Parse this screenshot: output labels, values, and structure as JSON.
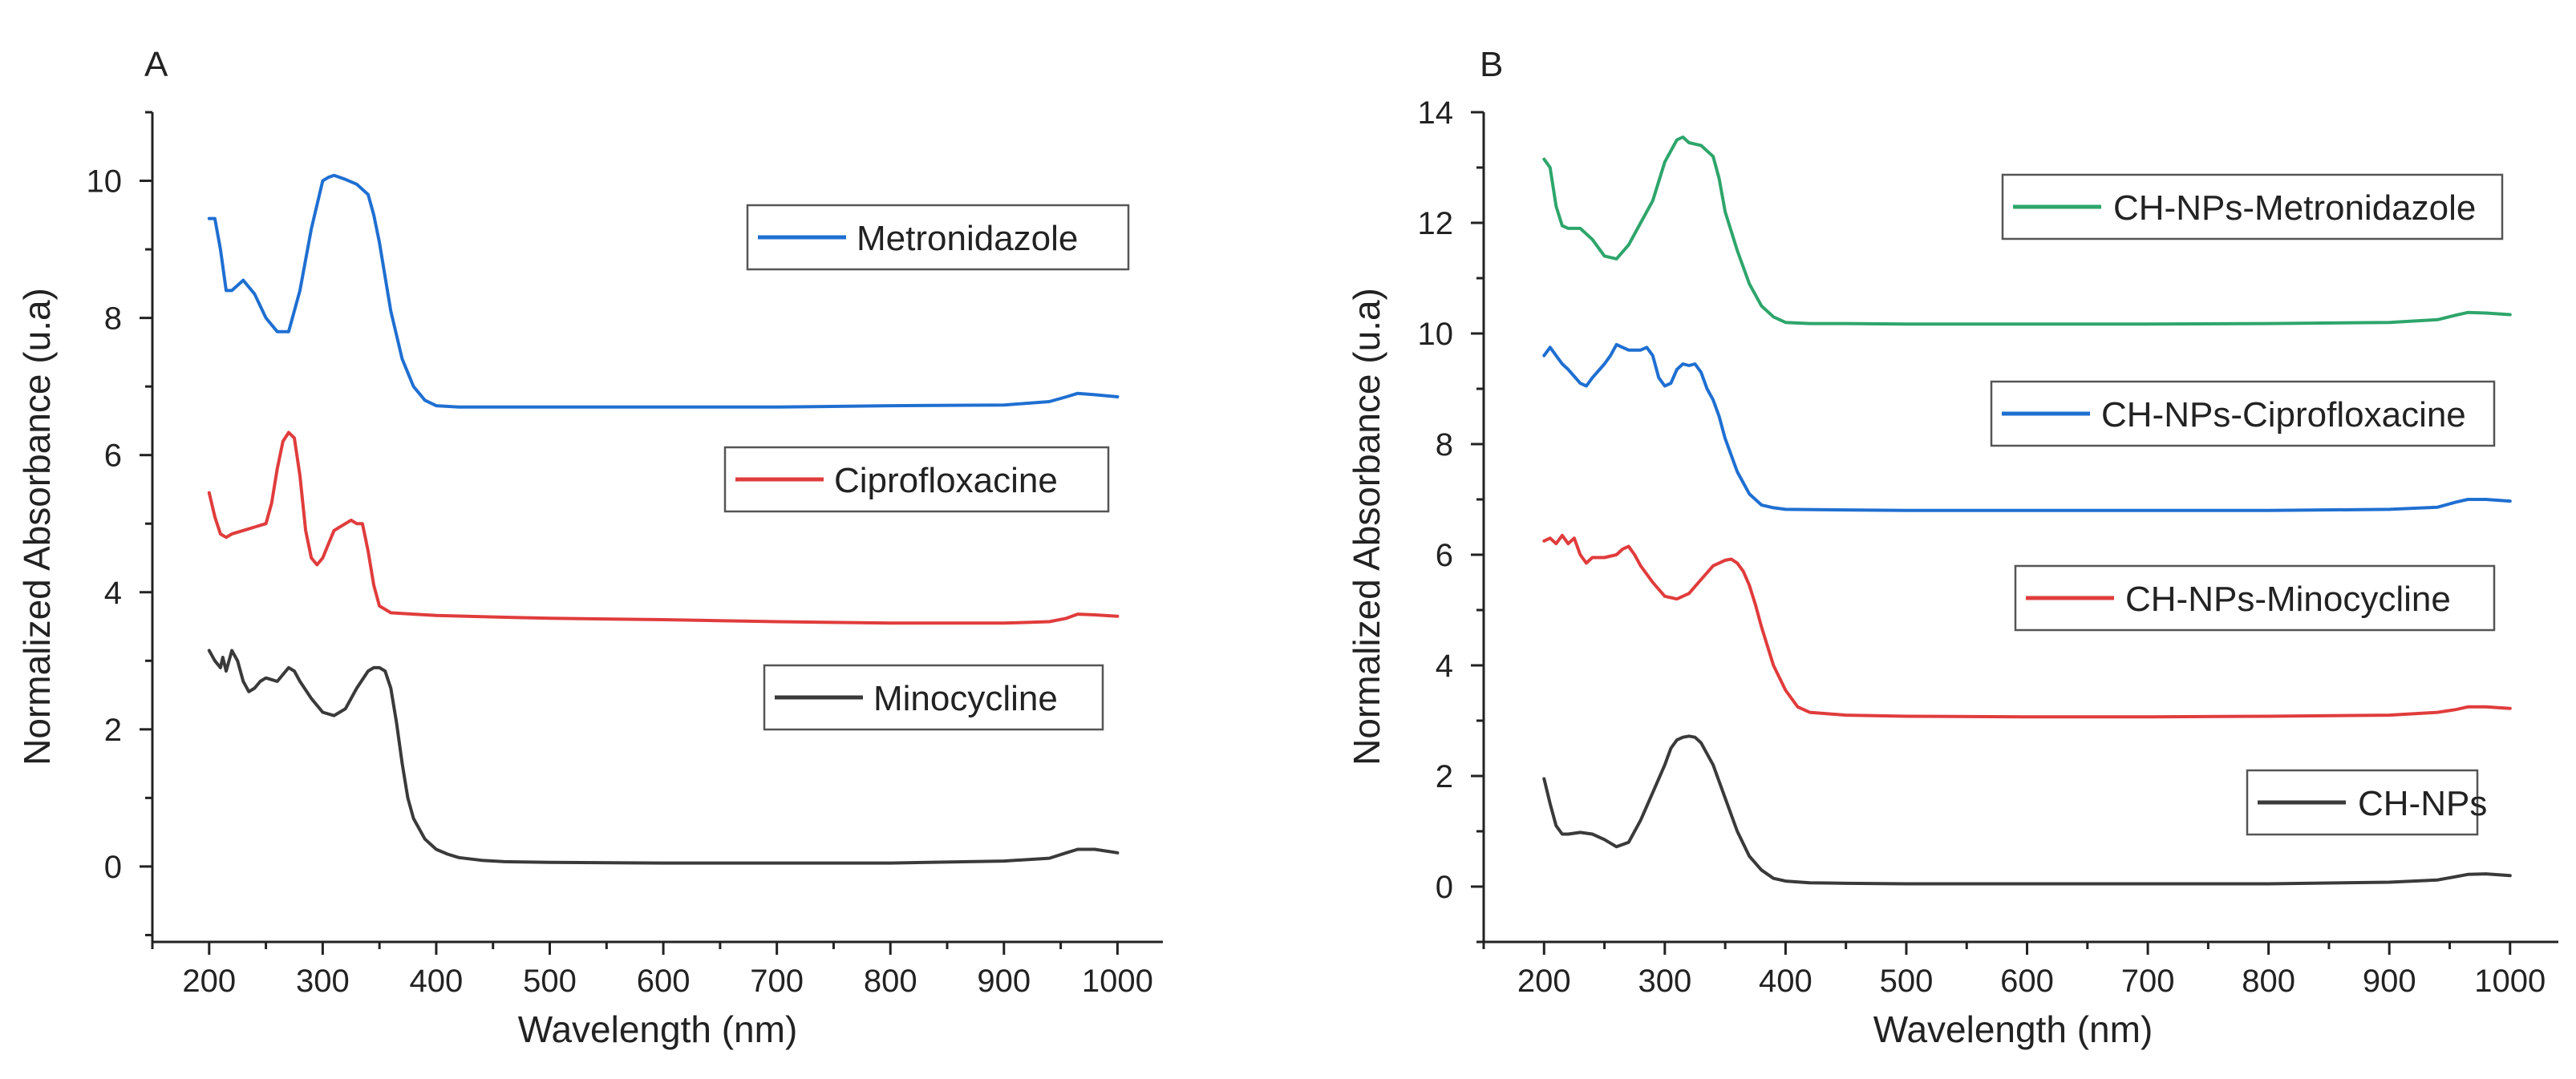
{
  "chart_data": [
    {
      "panel": "A",
      "type": "line",
      "title": "",
      "xlabel": "Wavelength (nm)",
      "ylabel": "Normalized Absorbance (u.a)",
      "xlim": [
        150,
        1040
      ],
      "ylim": [
        -1.1,
        11
      ],
      "xticks": [
        200,
        300,
        400,
        500,
        600,
        700,
        800,
        900,
        1000
      ],
      "yticks": [
        0,
        2,
        4,
        6,
        8,
        10
      ],
      "grid": false,
      "series": [
        {
          "name": "Metronidazole",
          "color": "#1f6fd1",
          "x": [
            200,
            205,
            210,
            215,
            220,
            230,
            240,
            250,
            260,
            270,
            280,
            290,
            300,
            305,
            310,
            320,
            330,
            340,
            345,
            350,
            355,
            360,
            370,
            380,
            390,
            400,
            420,
            450,
            500,
            600,
            700,
            800,
            900,
            940,
            955,
            965,
            980,
            1000
          ],
          "y": [
            9.45,
            9.45,
            9.0,
            8.4,
            8.4,
            8.55,
            8.35,
            8.0,
            7.8,
            7.8,
            8.4,
            9.3,
            10.0,
            10.05,
            10.08,
            10.02,
            9.95,
            9.8,
            9.5,
            9.1,
            8.6,
            8.1,
            7.4,
            7.0,
            6.8,
            6.72,
            6.7,
            6.7,
            6.7,
            6.7,
            6.7,
            6.72,
            6.73,
            6.78,
            6.85,
            6.9,
            6.88,
            6.85
          ]
        },
        {
          "name": "Ciprofloxacine",
          "color": "#e03c3c",
          "x": [
            200,
            205,
            210,
            215,
            220,
            230,
            240,
            250,
            255,
            260,
            265,
            270,
            275,
            280,
            285,
            290,
            295,
            300,
            305,
            310,
            320,
            325,
            330,
            335,
            340,
            345,
            350,
            360,
            380,
            400,
            450,
            500,
            600,
            700,
            800,
            900,
            940,
            955,
            965,
            980,
            1000
          ],
          "y": [
            5.45,
            5.1,
            4.85,
            4.8,
            4.85,
            4.9,
            4.95,
            5.0,
            5.3,
            5.8,
            6.2,
            6.33,
            6.25,
            5.7,
            4.9,
            4.5,
            4.4,
            4.5,
            4.7,
            4.9,
            5.0,
            5.05,
            5.0,
            5.0,
            4.6,
            4.1,
            3.8,
            3.7,
            3.68,
            3.66,
            3.64,
            3.62,
            3.6,
            3.57,
            3.55,
            3.55,
            3.57,
            3.62,
            3.68,
            3.67,
            3.65
          ]
        },
        {
          "name": "Minocycline",
          "color": "#3a3a3a",
          "x": [
            200,
            205,
            210,
            212,
            215,
            220,
            225,
            230,
            235,
            240,
            245,
            250,
            260,
            270,
            275,
            280,
            290,
            300,
            310,
            320,
            330,
            340,
            345,
            350,
            355,
            360,
            365,
            370,
            375,
            380,
            390,
            400,
            410,
            420,
            440,
            460,
            500,
            600,
            700,
            800,
            900,
            940,
            955,
            965,
            980,
            1000
          ],
          "y": [
            3.15,
            3.0,
            2.9,
            3.05,
            2.85,
            3.15,
            3.0,
            2.7,
            2.55,
            2.6,
            2.7,
            2.75,
            2.7,
            2.9,
            2.85,
            2.7,
            2.45,
            2.25,
            2.2,
            2.3,
            2.6,
            2.85,
            2.9,
            2.9,
            2.85,
            2.6,
            2.1,
            1.5,
            1.0,
            0.7,
            0.4,
            0.25,
            0.18,
            0.13,
            0.09,
            0.07,
            0.06,
            0.05,
            0.05,
            0.05,
            0.08,
            0.12,
            0.2,
            0.25,
            0.25,
            0.2
          ]
        }
      ],
      "legend": [
        "Metronidazole",
        "Ciprofloxacine",
        "Minocycline"
      ]
    },
    {
      "panel": "B",
      "type": "line",
      "title": "",
      "xlabel": "Wavelength (nm)",
      "ylabel": "Normalized Absorbance (u.a)",
      "xlim": [
        150,
        1040
      ],
      "ylim": [
        -1,
        14
      ],
      "xticks": [
        200,
        300,
        400,
        500,
        600,
        700,
        800,
        900,
        1000
      ],
      "yticks": [
        0,
        2,
        4,
        6,
        8,
        10,
        12,
        14
      ],
      "grid": false,
      "series": [
        {
          "name": "CH-NPs-Metronidazole",
          "color": "#2ea56b",
          "x": [
            200,
            205,
            210,
            215,
            220,
            230,
            240,
            250,
            260,
            270,
            280,
            290,
            300,
            310,
            315,
            320,
            330,
            340,
            345,
            350,
            360,
            370,
            380,
            390,
            400,
            420,
            450,
            500,
            600,
            700,
            800,
            900,
            940,
            955,
            965,
            980,
            1000
          ],
          "y": [
            13.15,
            13.0,
            12.3,
            11.95,
            11.9,
            11.9,
            11.7,
            11.4,
            11.35,
            11.6,
            12.0,
            12.4,
            13.1,
            13.5,
            13.55,
            13.45,
            13.4,
            13.2,
            12.8,
            12.2,
            11.5,
            10.9,
            10.5,
            10.3,
            10.2,
            10.18,
            10.18,
            10.17,
            10.17,
            10.17,
            10.18,
            10.2,
            10.25,
            10.33,
            10.38,
            10.37,
            10.34
          ]
        },
        {
          "name": "CH-NPs-Ciprofloxacine",
          "color": "#1f6fd1",
          "x": [
            200,
            205,
            210,
            215,
            220,
            230,
            235,
            240,
            250,
            255,
            260,
            265,
            270,
            280,
            285,
            290,
            295,
            300,
            305,
            310,
            315,
            320,
            325,
            330,
            335,
            340,
            345,
            350,
            360,
            370,
            380,
            390,
            400,
            450,
            500,
            600,
            700,
            800,
            900,
            940,
            955,
            965,
            980,
            1000
          ],
          "y": [
            9.6,
            9.75,
            9.6,
            9.45,
            9.35,
            9.1,
            9.05,
            9.2,
            9.45,
            9.6,
            9.8,
            9.75,
            9.7,
            9.7,
            9.75,
            9.6,
            9.2,
            9.05,
            9.1,
            9.35,
            9.45,
            9.42,
            9.45,
            9.3,
            9.0,
            8.8,
            8.5,
            8.1,
            7.5,
            7.1,
            6.9,
            6.85,
            6.82,
            6.81,
            6.8,
            6.8,
            6.8,
            6.8,
            6.82,
            6.86,
            6.95,
            7.0,
            7.0,
            6.97
          ]
        },
        {
          "name": "CH-NPs-Minocycline",
          "color": "#e03c3c",
          "x": [
            200,
            205,
            210,
            215,
            220,
            225,
            230,
            235,
            240,
            250,
            260,
            265,
            270,
            275,
            280,
            290,
            300,
            310,
            320,
            330,
            340,
            350,
            355,
            360,
            365,
            370,
            375,
            380,
            390,
            400,
            410,
            420,
            450,
            500,
            600,
            700,
            800,
            900,
            940,
            955,
            965,
            980,
            1000
          ],
          "y": [
            6.25,
            6.3,
            6.2,
            6.35,
            6.2,
            6.3,
            6.0,
            5.85,
            5.95,
            5.95,
            6.0,
            6.1,
            6.15,
            6.0,
            5.8,
            5.5,
            5.25,
            5.2,
            5.3,
            5.55,
            5.8,
            5.9,
            5.92,
            5.85,
            5.7,
            5.45,
            5.1,
            4.7,
            4.0,
            3.55,
            3.25,
            3.15,
            3.1,
            3.08,
            3.07,
            3.07,
            3.08,
            3.1,
            3.15,
            3.2,
            3.25,
            3.25,
            3.22
          ]
        },
        {
          "name": "CH-NPs",
          "color": "#3a3a3a",
          "x": [
            200,
            205,
            210,
            215,
            220,
            230,
            240,
            250,
            260,
            270,
            280,
            290,
            300,
            305,
            310,
            315,
            320,
            325,
            330,
            340,
            350,
            360,
            370,
            380,
            390,
            400,
            420,
            450,
            500,
            600,
            700,
            800,
            900,
            940,
            955,
            965,
            980,
            1000
          ],
          "y": [
            1.95,
            1.5,
            1.1,
            0.95,
            0.95,
            0.98,
            0.95,
            0.85,
            0.72,
            0.8,
            1.2,
            1.7,
            2.2,
            2.5,
            2.65,
            2.7,
            2.72,
            2.7,
            2.6,
            2.2,
            1.6,
            1.0,
            0.55,
            0.3,
            0.15,
            0.1,
            0.07,
            0.06,
            0.05,
            0.05,
            0.05,
            0.05,
            0.08,
            0.12,
            0.18,
            0.22,
            0.23,
            0.2
          ]
        }
      ],
      "legend": [
        "CH-NPs-Metronidazole",
        "CH-NPs-Ciprofloxacine",
        "CH-NPs-Minocycline",
        "CH-NPs"
      ]
    }
  ],
  "panels": {
    "a": {
      "letter": "A"
    },
    "b": {
      "letter": "B"
    }
  }
}
